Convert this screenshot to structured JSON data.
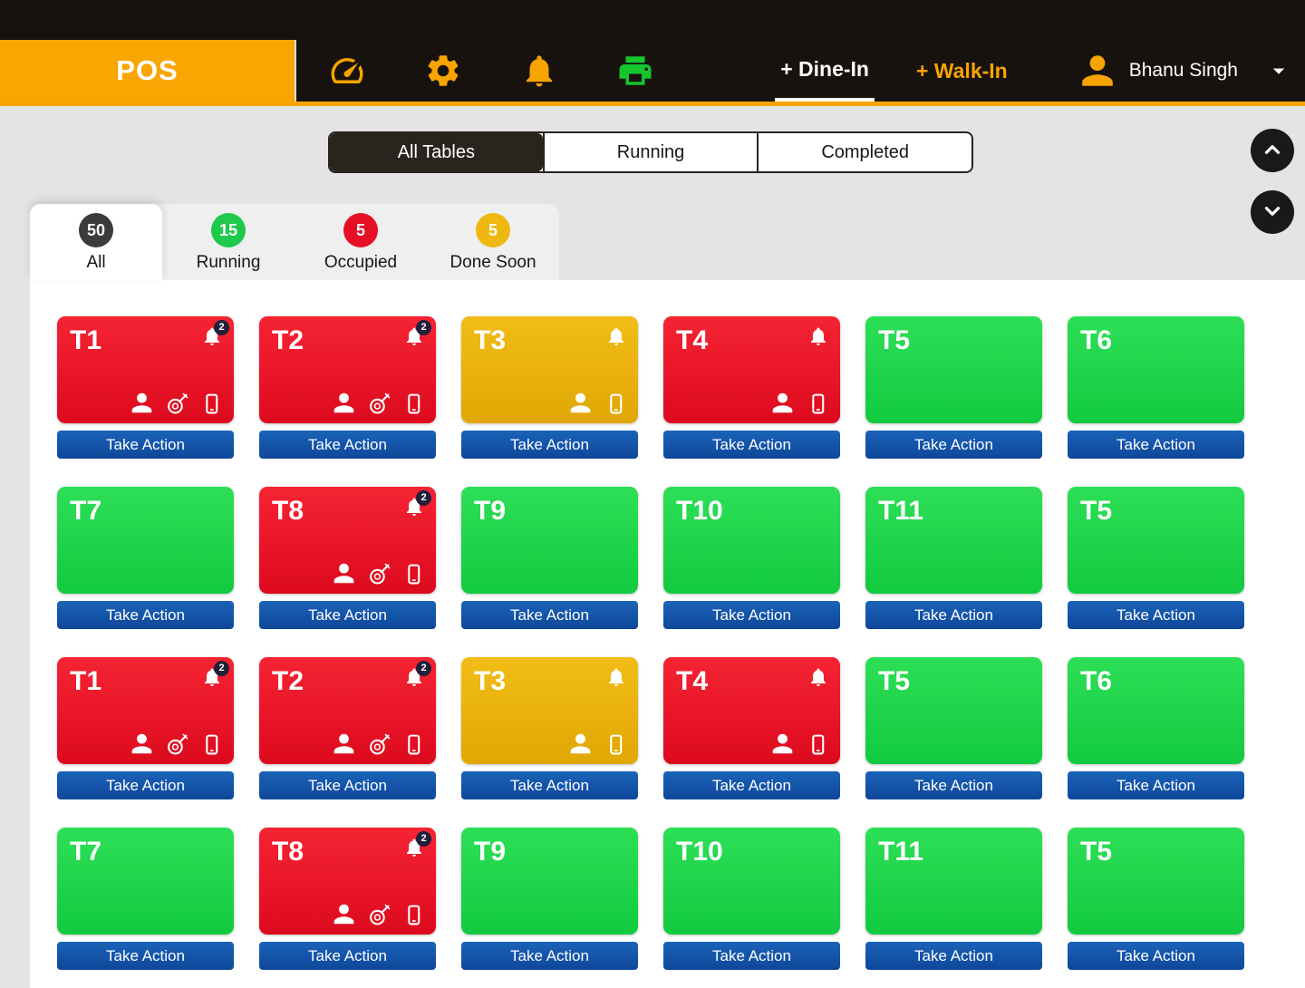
{
  "header": {
    "brand": "POS",
    "dine_in_label": "+ Dine-In",
    "walk_in_label": "+ Walk-In",
    "user_name": "Bhanu Singh"
  },
  "view_tabs": [
    {
      "label": "All Tables",
      "active": true
    },
    {
      "label": "Running",
      "active": false
    },
    {
      "label": "Completed",
      "active": false
    }
  ],
  "filters": [
    {
      "label": "All",
      "count": "50",
      "badge_color": "#3b3b3b",
      "active": true
    },
    {
      "label": "Running",
      "count": "15",
      "badge_color": "#1ec94b",
      "active": false
    },
    {
      "label": "Occupied",
      "count": "5",
      "badge_color": "#e60f25",
      "active": false
    },
    {
      "label": "Done Soon",
      "count": "5",
      "badge_color": "#efb810",
      "active": false
    }
  ],
  "take_action_label": "Take Action",
  "status_colors": {
    "occupied_red": "#e8192c",
    "done_soon_yellow": "#eab40e",
    "free_green": "#1fd54a",
    "action_blue": "#1457a8",
    "accent_orange": "#f7a400"
  },
  "tables": [
    {
      "name": "T1",
      "status": "red",
      "bell": true,
      "bell_count": "2",
      "icons": [
        "waiter",
        "dish",
        "phone"
      ]
    },
    {
      "name": "T2",
      "status": "red",
      "bell": true,
      "bell_count": "2",
      "icons": [
        "waiter",
        "dish",
        "phone"
      ]
    },
    {
      "name": "T3",
      "status": "yellow",
      "bell": true,
      "bell_count": "",
      "icons": [
        "waiter",
        "phone"
      ]
    },
    {
      "name": "T4",
      "status": "red",
      "bell": true,
      "bell_count": "",
      "icons": [
        "waiter",
        "phone"
      ]
    },
    {
      "name": "T5",
      "status": "green",
      "bell": false,
      "bell_count": "",
      "icons": []
    },
    {
      "name": "T6",
      "status": "green",
      "bell": false,
      "bell_count": "",
      "icons": []
    },
    {
      "name": "T7",
      "status": "green",
      "bell": false,
      "bell_count": "",
      "icons": []
    },
    {
      "name": "T8",
      "status": "red",
      "bell": true,
      "bell_count": "2",
      "icons": [
        "waiter",
        "dish",
        "phone"
      ]
    },
    {
      "name": "T9",
      "status": "green",
      "bell": false,
      "bell_count": "",
      "icons": []
    },
    {
      "name": "T10",
      "status": "green",
      "bell": false,
      "bell_count": "",
      "icons": []
    },
    {
      "name": "T11",
      "status": "green",
      "bell": false,
      "bell_count": "",
      "icons": []
    },
    {
      "name": "T5",
      "status": "green",
      "bell": false,
      "bell_count": "",
      "icons": []
    },
    {
      "name": "T1",
      "status": "red",
      "bell": true,
      "bell_count": "2",
      "icons": [
        "waiter",
        "dish",
        "phone"
      ]
    },
    {
      "name": "T2",
      "status": "red",
      "bell": true,
      "bell_count": "2",
      "icons": [
        "waiter",
        "dish",
        "phone"
      ]
    },
    {
      "name": "T3",
      "status": "yellow",
      "bell": true,
      "bell_count": "",
      "icons": [
        "waiter",
        "phone"
      ]
    },
    {
      "name": "T4",
      "status": "red",
      "bell": true,
      "bell_count": "",
      "icons": [
        "waiter",
        "phone"
      ]
    },
    {
      "name": "T5",
      "status": "green",
      "bell": false,
      "bell_count": "",
      "icons": []
    },
    {
      "name": "T6",
      "status": "green",
      "bell": false,
      "bell_count": "",
      "icons": []
    },
    {
      "name": "T7",
      "status": "green",
      "bell": false,
      "bell_count": "",
      "icons": []
    },
    {
      "name": "T8",
      "status": "red",
      "bell": true,
      "bell_count": "2",
      "icons": [
        "waiter",
        "dish",
        "phone"
      ]
    },
    {
      "name": "T9",
      "status": "green",
      "bell": false,
      "bell_count": "",
      "icons": []
    },
    {
      "name": "T10",
      "status": "green",
      "bell": false,
      "bell_count": "",
      "icons": []
    },
    {
      "name": "T11",
      "status": "green",
      "bell": false,
      "bell_count": "",
      "icons": []
    },
    {
      "name": "T5",
      "status": "green",
      "bell": false,
      "bell_count": "",
      "icons": []
    }
  ]
}
